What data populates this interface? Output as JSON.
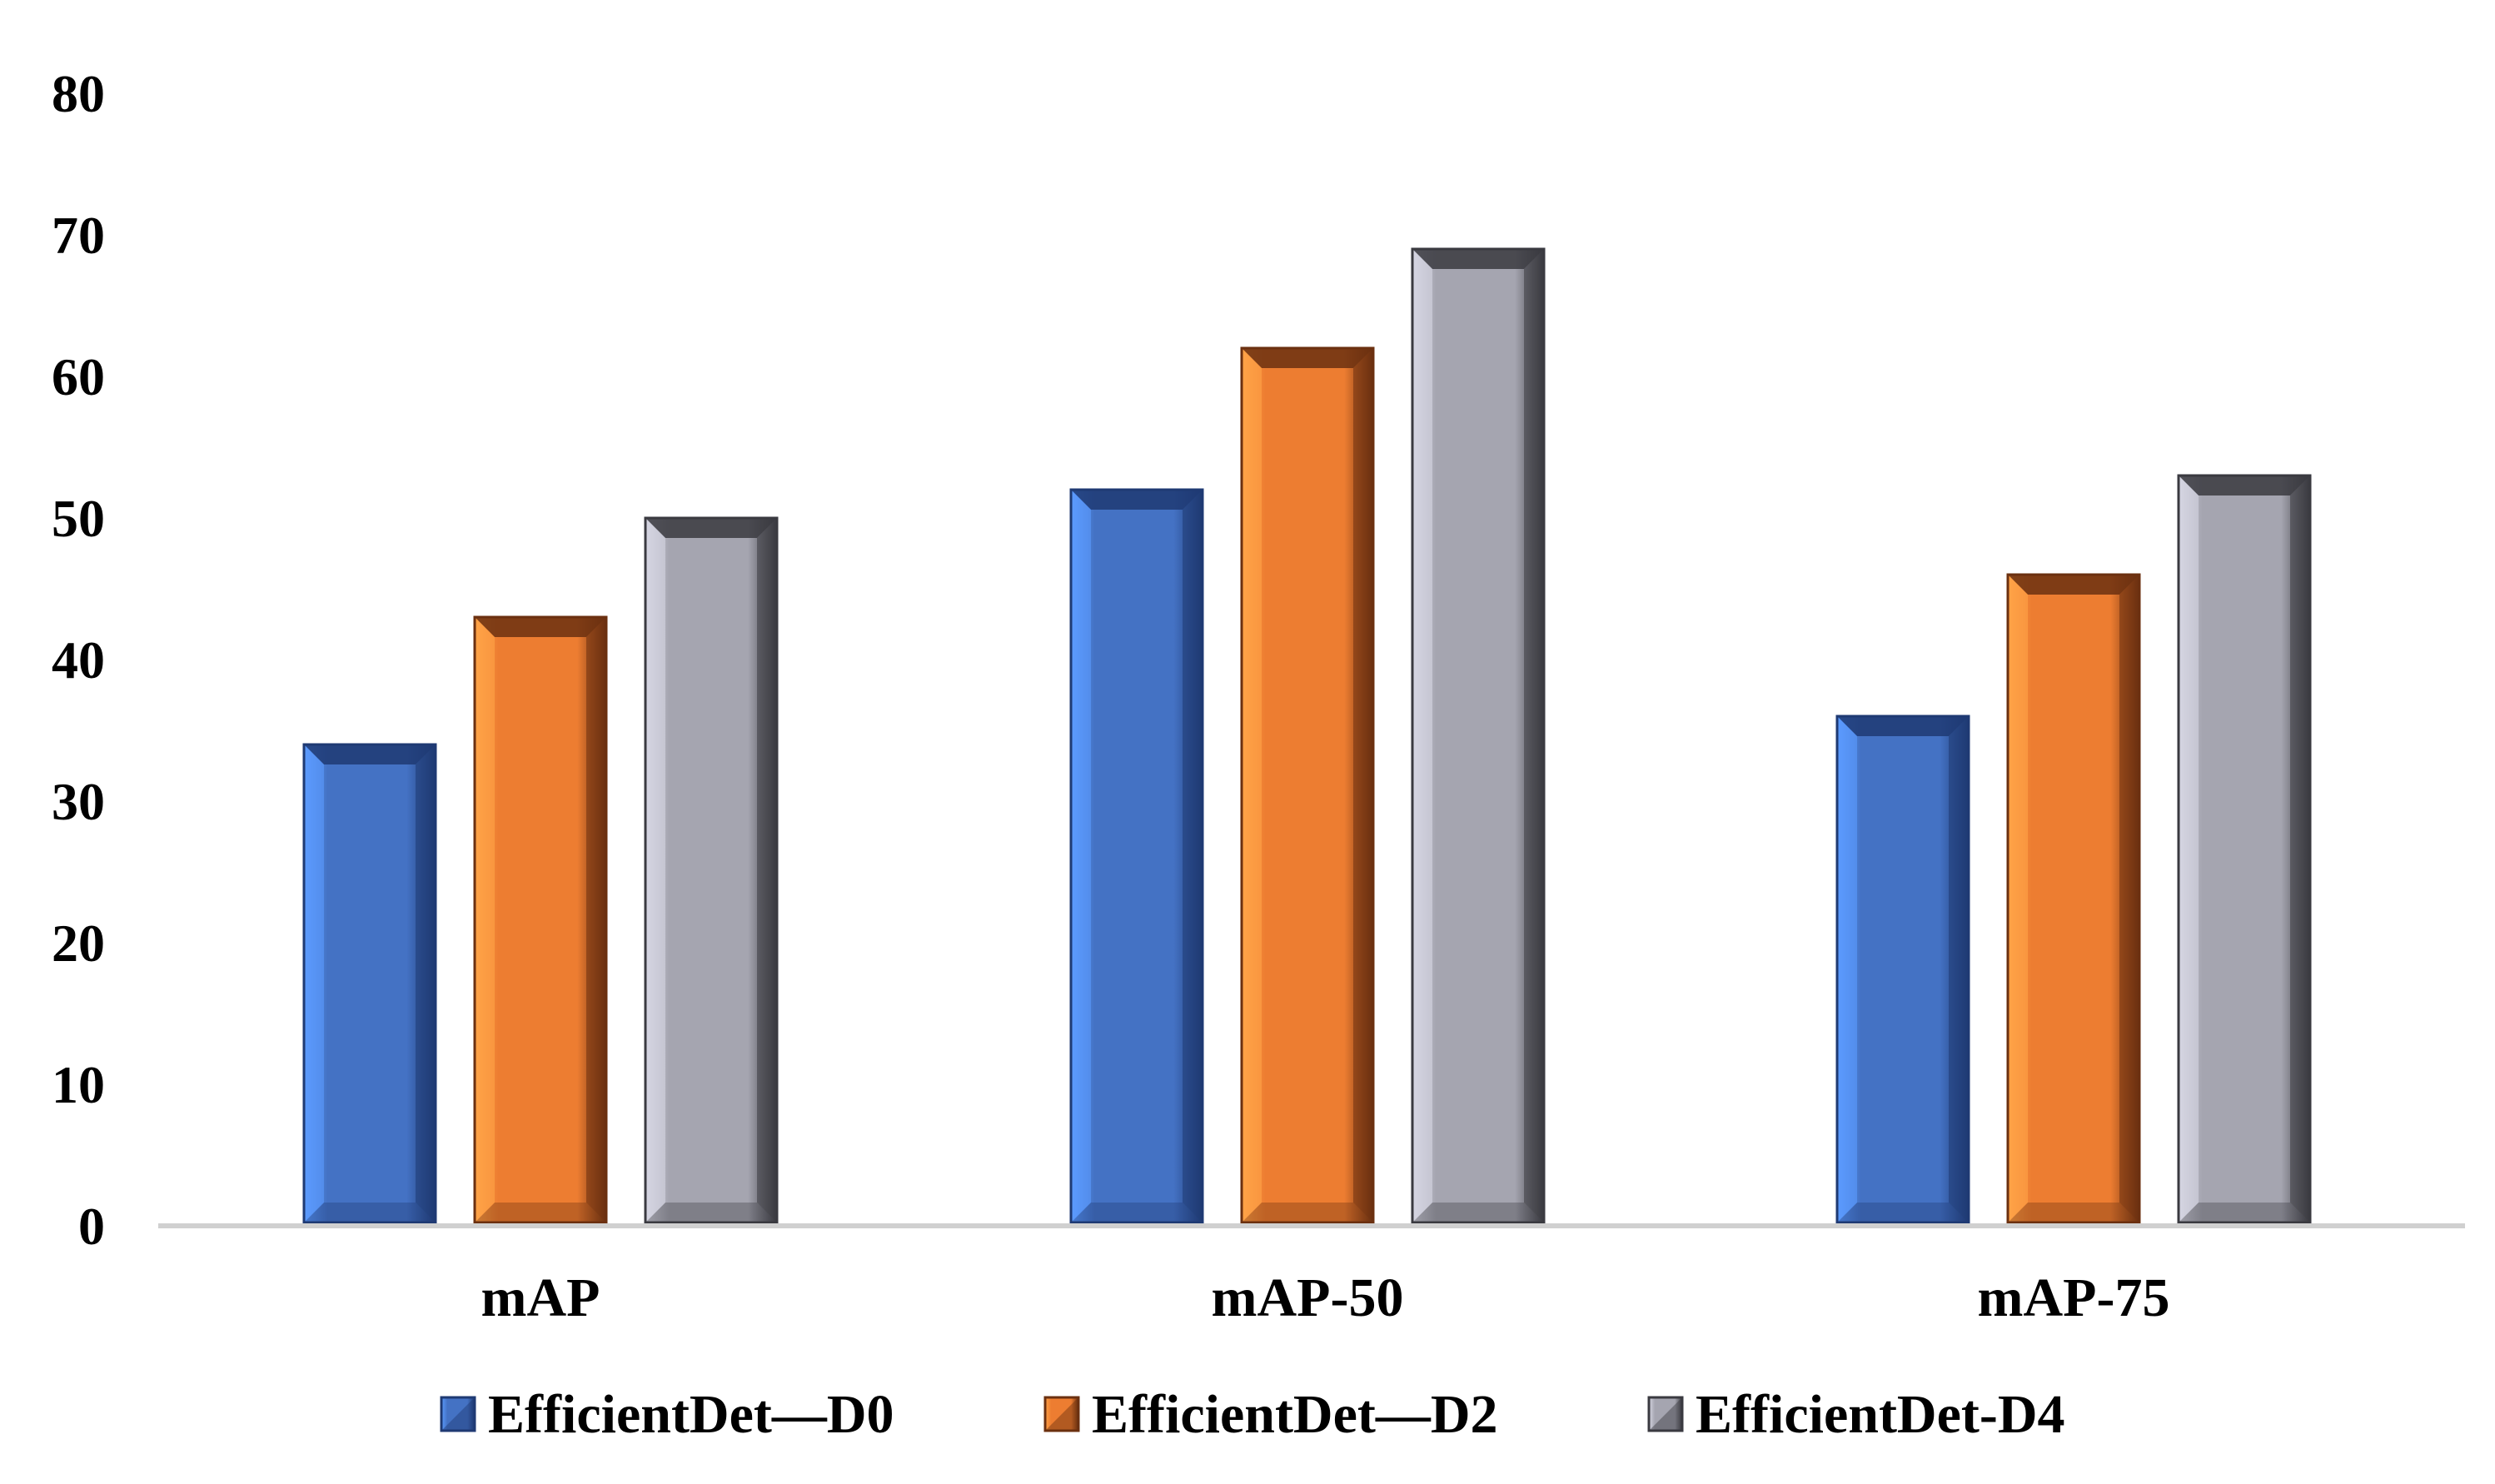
{
  "chart_data": {
    "type": "bar",
    "title": "",
    "xlabel": "",
    "ylabel": "",
    "categories": [
      "mAP",
      "mAP-50",
      "mAP-75"
    ],
    "series": [
      {
        "name": "EfficientDet—D0",
        "values": [
          34,
          52,
          36
        ],
        "color": "#4472C4",
        "light": "#5B9BFF",
        "dark": "#1F3A73"
      },
      {
        "name": "EfficientDet—D2",
        "values": [
          43,
          62,
          46
        ],
        "color": "#ED7D31",
        "light": "#FFA347",
        "dark": "#6B3010"
      },
      {
        "name": "EfficientDet-D4",
        "values": [
          50,
          69,
          53
        ],
        "color": "#A5A5B0",
        "light": "#D6D6E2",
        "dark": "#3A3A40"
      }
    ],
    "ylim": [
      0,
      80
    ],
    "yticks": [
      "0",
      "10",
      "20",
      "30",
      "40",
      "50",
      "60",
      "70",
      "80"
    ],
    "grid": false,
    "legend": "bottom-center"
  }
}
